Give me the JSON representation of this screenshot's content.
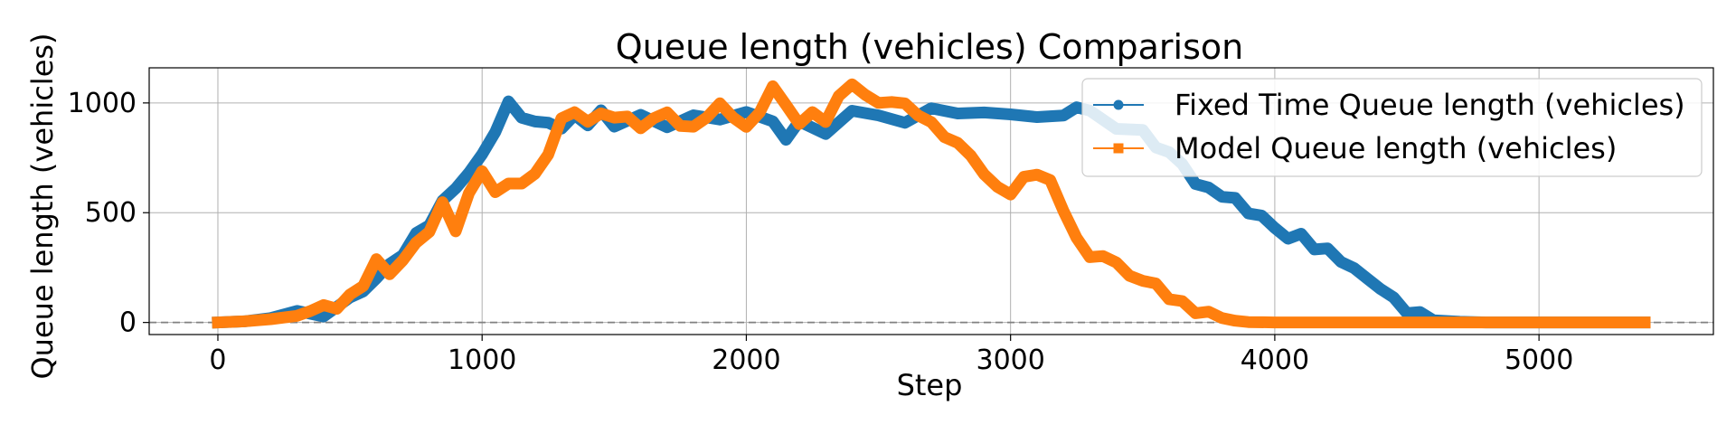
{
  "chart_data": {
    "type": "line",
    "title": "Queue length (vehicles) Comparison",
    "xlabel": "Step",
    "ylabel": "Queue length (vehicles)",
    "xlim": [
      -260,
      5660
    ],
    "ylim": [
      -55,
      1160
    ],
    "xticks": [
      0,
      1000,
      2000,
      3000,
      4000,
      5000
    ],
    "yticks": [
      0,
      500,
      1000
    ],
    "grid": true,
    "legend_position": "top-right",
    "reference_line": {
      "y": 0,
      "style": "dashed",
      "color": "#808080"
    },
    "series": [
      {
        "name": "Fixed Time Queue length (vehicles)",
        "color": "#1f77b4",
        "marker": "circle",
        "x": [
          0,
          100,
          200,
          300,
          400,
          500,
          550,
          600,
          650,
          700,
          750,
          800,
          850,
          900,
          950,
          1000,
          1050,
          1100,
          1150,
          1200,
          1250,
          1300,
          1350,
          1400,
          1450,
          1500,
          1600,
          1700,
          1800,
          1900,
          2000,
          2100,
          2150,
          2200,
          2300,
          2400,
          2500,
          2600,
          2700,
          2800,
          2900,
          3000,
          3100,
          3200,
          3250,
          3300,
          3400,
          3500,
          3550,
          3600,
          3650,
          3700,
          3750,
          3800,
          3850,
          3900,
          3950,
          4000,
          4050,
          4100,
          4150,
          4200,
          4250,
          4300,
          4350,
          4400,
          4450,
          4500,
          4550,
          4600,
          4700,
          4800,
          5000,
          5200,
          5400
        ],
        "y": [
          0,
          5,
          20,
          35,
          45,
          100,
          150,
          200,
          260,
          320,
          390,
          460,
          540,
          620,
          680,
          760,
          880,
          990,
          950,
          900,
          920,
          880,
          940,
          910,
          950,
          910,
          930,
          900,
          940,
          920,
          970,
          900,
          850,
          900,
          870,
          960,
          940,
          920,
          960,
          970,
          940,
          960,
          930,
          940,
          990,
          950,
          900,
          860,
          810,
          770,
          720,
          640,
          600,
          590,
          550,
          510,
          480,
          430,
          390,
          390,
          350,
          320,
          290,
          240,
          200,
          160,
          100,
          60,
          30,
          10,
          3,
          0,
          0,
          0,
          0
        ]
      },
      {
        "name": "Model Queue length (vehicles)",
        "color": "#ff7f0e",
        "marker": "square",
        "x": [
          0,
          100,
          200,
          300,
          350,
          400,
          450,
          500,
          550,
          600,
          650,
          700,
          750,
          800,
          850,
          900,
          950,
          1000,
          1050,
          1100,
          1150,
          1200,
          1250,
          1300,
          1350,
          1400,
          1450,
          1500,
          1550,
          1600,
          1650,
          1700,
          1750,
          1800,
          1850,
          1900,
          1950,
          2000,
          2050,
          2100,
          2150,
          2200,
          2250,
          2300,
          2350,
          2400,
          2450,
          2500,
          2550,
          2600,
          2650,
          2700,
          2750,
          2800,
          2850,
          2900,
          2950,
          3000,
          3050,
          3100,
          3150,
          3200,
          3250,
          3300,
          3350,
          3400,
          3450,
          3500,
          3550,
          3600,
          3650,
          3700,
          3750,
          3800,
          3850,
          3900,
          4000,
          4200,
          4600,
          5000,
          5400
        ],
        "y": [
          0,
          5,
          15,
          30,
          60,
          65,
          80,
          110,
          180,
          280,
          220,
          290,
          350,
          430,
          530,
          430,
          580,
          690,
          600,
          620,
          650,
          660,
          780,
          920,
          960,
          920,
          940,
          950,
          920,
          900,
          920,
          960,
          900,
          880,
          950,
          980,
          950,
          880,
          960,
          1080,
          980,
          920,
          940,
          930,
          1020,
          1090,
          1040,
          990,
          1020,
          980,
          960,
          900,
          850,
          820,
          750,
          690,
          600,
          600,
          650,
          680,
          650,
          500,
          400,
          280,
          320,
          260,
          220,
          190,
          170,
          120,
          80,
          60,
          35,
          20,
          8,
          2,
          0,
          0,
          0,
          0,
          0
        ]
      }
    ]
  }
}
